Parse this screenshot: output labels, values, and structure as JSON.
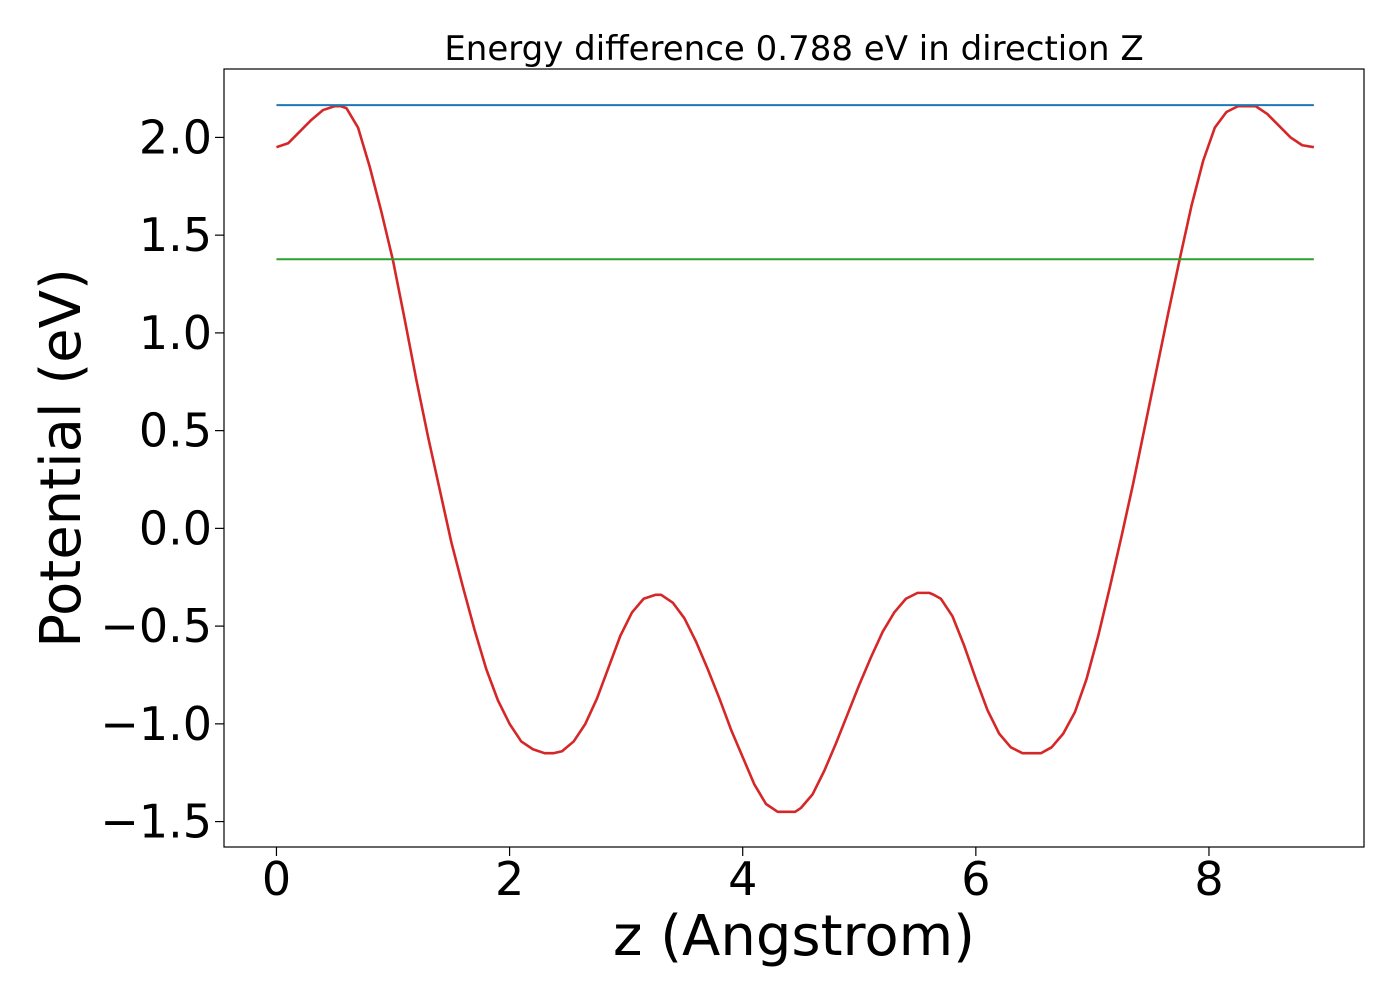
{
  "chart_data": {
    "type": "line",
    "title": "Energy difference 0.788 eV in direction Z",
    "xlabel": "z (Angstrom)",
    "ylabel": "Potential (eV)",
    "xlim": [
      -0.45,
      9.33
    ],
    "ylim": [
      -1.63,
      2.35
    ],
    "xticks": [
      0,
      2,
      4,
      6,
      8
    ],
    "xtick_labels": [
      "0",
      "2",
      "4",
      "6",
      "8"
    ],
    "yticks": [
      -1.5,
      -1.0,
      -0.5,
      0.0,
      0.5,
      1.0,
      1.5,
      2.0
    ],
    "ytick_labels": [
      "−1.5",
      "−1.0",
      "−0.5",
      "0.0",
      "0.5",
      "1.0",
      "1.5",
      "2.0"
    ],
    "grid": false,
    "series": [
      {
        "color": "#d62728",
        "x": [
          0,
          0.1,
          0.2,
          0.3,
          0.4,
          0.5,
          0.55,
          0.6,
          0.7,
          0.8,
          0.9,
          1.0,
          1.1,
          1.2,
          1.3,
          1.4,
          1.5,
          1.6,
          1.7,
          1.8,
          1.9,
          2.0,
          2.1,
          2.2,
          2.3,
          2.38,
          2.45,
          2.55,
          2.65,
          2.75,
          2.85,
          2.95,
          3.05,
          3.15,
          3.25,
          3.3,
          3.4,
          3.5,
          3.6,
          3.7,
          3.8,
          3.9,
          4.0,
          4.1,
          4.2,
          4.3,
          4.4,
          4.45,
          4.5,
          4.6,
          4.7,
          4.8,
          4.9,
          5.0,
          5.1,
          5.2,
          5.3,
          5.4,
          5.5,
          5.6,
          5.64,
          5.7,
          5.8,
          5.9,
          6.0,
          6.1,
          6.2,
          6.3,
          6.4,
          6.5,
          6.56,
          6.65,
          6.75,
          6.85,
          6.95,
          7.05,
          7.15,
          7.25,
          7.35,
          7.45,
          7.55,
          7.65,
          7.75,
          7.85,
          7.95,
          8.05,
          8.15,
          8.25,
          8.35,
          8.4,
          8.5,
          8.6,
          8.7,
          8.8,
          8.9
        ],
        "y": [
          1.95,
          1.97,
          2.03,
          2.09,
          2.14,
          2.16,
          2.16,
          2.15,
          2.05,
          1.85,
          1.62,
          1.37,
          1.07,
          0.76,
          0.47,
          0.2,
          -0.07,
          -0.3,
          -0.52,
          -0.72,
          -0.88,
          -1.0,
          -1.09,
          -1.13,
          -1.15,
          -1.15,
          -1.14,
          -1.09,
          -1.0,
          -0.87,
          -0.71,
          -0.55,
          -0.43,
          -0.36,
          -0.34,
          -0.34,
          -0.38,
          -0.46,
          -0.58,
          -0.72,
          -0.87,
          -1.03,
          -1.17,
          -1.31,
          -1.41,
          -1.45,
          -1.45,
          -1.45,
          -1.43,
          -1.36,
          -1.24,
          -1.1,
          -0.95,
          -0.8,
          -0.66,
          -0.53,
          -0.43,
          -0.36,
          -0.33,
          -0.33,
          -0.34,
          -0.36,
          -0.45,
          -0.6,
          -0.77,
          -0.93,
          -1.05,
          -1.12,
          -1.15,
          -1.15,
          -1.15,
          -1.12,
          -1.05,
          -0.94,
          -0.77,
          -0.55,
          -0.3,
          -0.04,
          0.23,
          0.52,
          0.81,
          1.1,
          1.38,
          1.65,
          1.88,
          2.05,
          2.13,
          2.16,
          2.16,
          2.16,
          2.12,
          2.06,
          2.0,
          1.96,
          1.95
        ]
      },
      {
        "color": "#1f77b4",
        "x": [
          0,
          8.9
        ],
        "y": [
          2.165,
          2.165
        ]
      },
      {
        "color": "#2ca02c",
        "x": [
          0,
          8.9
        ],
        "y": [
          1.377,
          1.377
        ]
      }
    ]
  }
}
